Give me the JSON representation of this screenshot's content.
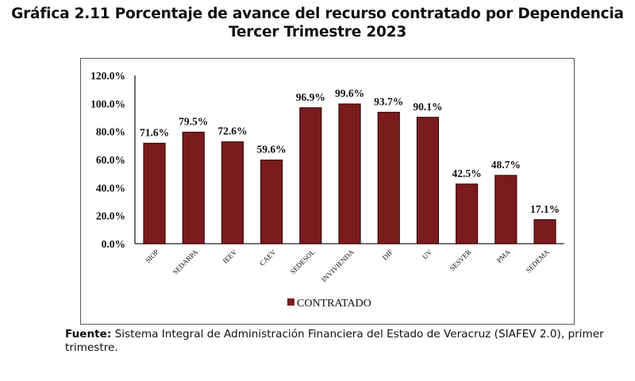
{
  "title_line1": "Gráfica 2.11 Porcentaje de avance del recurso contratado por Dependencia",
  "title_line2": "Tercer Trimestre 2023",
  "chart_data": {
    "type": "bar",
    "title": "Gráfica 2.11 Porcentaje de avance del recurso contratado por Dependencia Tercer Trimestre 2023",
    "xlabel": "",
    "ylabel": "",
    "categories": [
      "SIOP",
      "SEDARPA",
      "IEEV",
      "CAEV",
      "SEDESOL",
      "INVIVIENDA",
      "DIF",
      "UV",
      "SESVER",
      "PMA",
      "SEDEMA"
    ],
    "series": [
      {
        "name": "CONTRATADO",
        "values": [
          71.6,
          79.5,
          72.6,
          59.6,
          96.9,
          99.6,
          93.7,
          90.1,
          42.5,
          48.7,
          17.1
        ],
        "labels": [
          "71.6%",
          "79.5%",
          "72.6%",
          "59.6%",
          "96.9%",
          "99.6%",
          "93.7%",
          "90.1%",
          "42.5%",
          "48.7%",
          "17.1%"
        ],
        "color": "#7a1c1e"
      }
    ],
    "ylim": [
      0,
      120
    ],
    "yticks": [
      0,
      20,
      40,
      60,
      80,
      100,
      120
    ],
    "ytick_labels": [
      "0.0%",
      "20.0%",
      "40.0%",
      "60.0%",
      "80.0%",
      "100.0%",
      "120.0%"
    ],
    "grid": false,
    "legend": {
      "position": "bottom",
      "entries": [
        "CONTRATADO"
      ]
    }
  },
  "footer": {
    "label": "Fuente:",
    "text": " Sistema Integral de Administración Financiera del Estado de Veracruz (SIAFEV 2.0), primer trimestre."
  }
}
